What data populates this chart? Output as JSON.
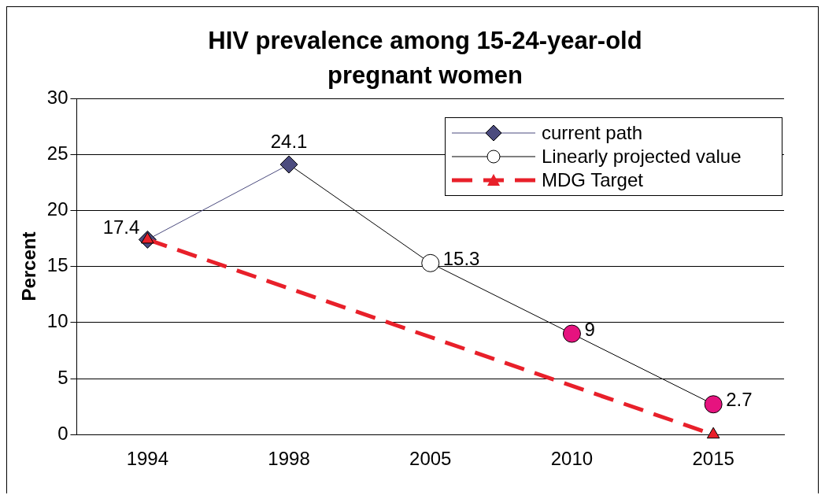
{
  "chart_data": {
    "type": "line",
    "title": "HIV prevalence among 15-24-year-old pregnant women",
    "ylabel": "Percent",
    "categories": [
      "1994",
      "1998",
      "2005",
      "2010",
      "2015"
    ],
    "series": [
      {
        "name": "current path",
        "color": "#4b4b7e",
        "marker": "diamond",
        "values": [
          17.4,
          24.1,
          null,
          null,
          null
        ],
        "value_labels": [
          "17.4",
          "24.1",
          null,
          null,
          null
        ]
      },
      {
        "name": "Linearly projected value",
        "color": "#000000",
        "marker": "circle",
        "colors": [
          null,
          null,
          "#ffffff",
          "#e6137f",
          "#e6137f"
        ],
        "values": [
          null,
          null,
          15.3,
          9,
          2.7
        ],
        "value_labels": [
          null,
          null,
          "15.3",
          "9",
          "2.7"
        ]
      },
      {
        "name": "MDG Target",
        "color": "#e8202a",
        "marker": "triangle",
        "line_style": "dashed",
        "values": [
          17.4,
          null,
          null,
          null,
          0
        ]
      }
    ],
    "ylim": [
      0,
      30
    ],
    "yticks": [
      0,
      5,
      10,
      15,
      20,
      25,
      30
    ],
    "grid": "y",
    "legend": "top right"
  }
}
